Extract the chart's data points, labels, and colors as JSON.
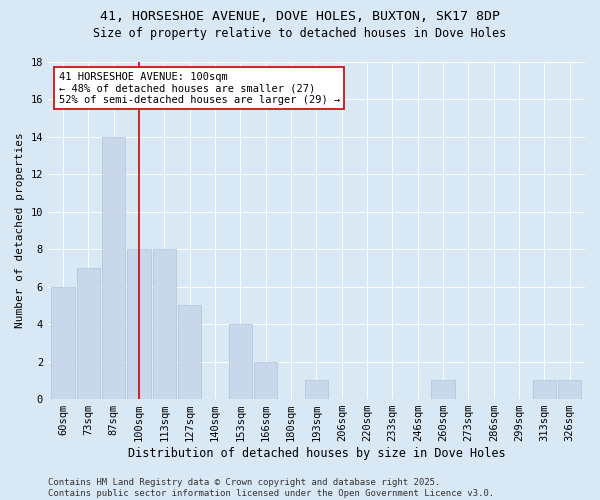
{
  "title_line1": "41, HORSESHOE AVENUE, DOVE HOLES, BUXTON, SK17 8DP",
  "title_line2": "Size of property relative to detached houses in Dove Holes",
  "xlabel": "Distribution of detached houses by size in Dove Holes",
  "ylabel": "Number of detached properties",
  "categories": [
    "60sqm",
    "73sqm",
    "87sqm",
    "100sqm",
    "113sqm",
    "127sqm",
    "140sqm",
    "153sqm",
    "166sqm",
    "180sqm",
    "193sqm",
    "206sqm",
    "220sqm",
    "233sqm",
    "246sqm",
    "260sqm",
    "273sqm",
    "286sqm",
    "299sqm",
    "313sqm",
    "326sqm"
  ],
  "values": [
    6,
    7,
    14,
    8,
    8,
    5,
    0,
    4,
    2,
    0,
    1,
    0,
    0,
    0,
    0,
    1,
    0,
    0,
    0,
    1,
    1
  ],
  "bar_color": "#c8d8ea",
  "bar_edge_color": "#b0c4d8",
  "vline_x_index": 3,
  "vline_color": "#cc0000",
  "annotation_text": "41 HORSESHOE AVENUE: 100sqm\n← 48% of detached houses are smaller (27)\n52% of semi-detached houses are larger (29) →",
  "annotation_box_facecolor": "#ffffff",
  "annotation_box_edgecolor": "#cc0000",
  "ylim": [
    0,
    18
  ],
  "yticks": [
    0,
    2,
    4,
    6,
    8,
    10,
    12,
    14,
    16,
    18
  ],
  "background_color": "#d9e8f5",
  "plot_bg_color": "#d9e8f5",
  "footer_text": "Contains HM Land Registry data © Crown copyright and database right 2025.\nContains public sector information licensed under the Open Government Licence v3.0.",
  "title_fontsize": 9.5,
  "subtitle_fontsize": 8.5,
  "xlabel_fontsize": 8.5,
  "ylabel_fontsize": 8,
  "tick_fontsize": 7.5,
  "annotation_fontsize": 7.5,
  "footer_fontsize": 6.5
}
